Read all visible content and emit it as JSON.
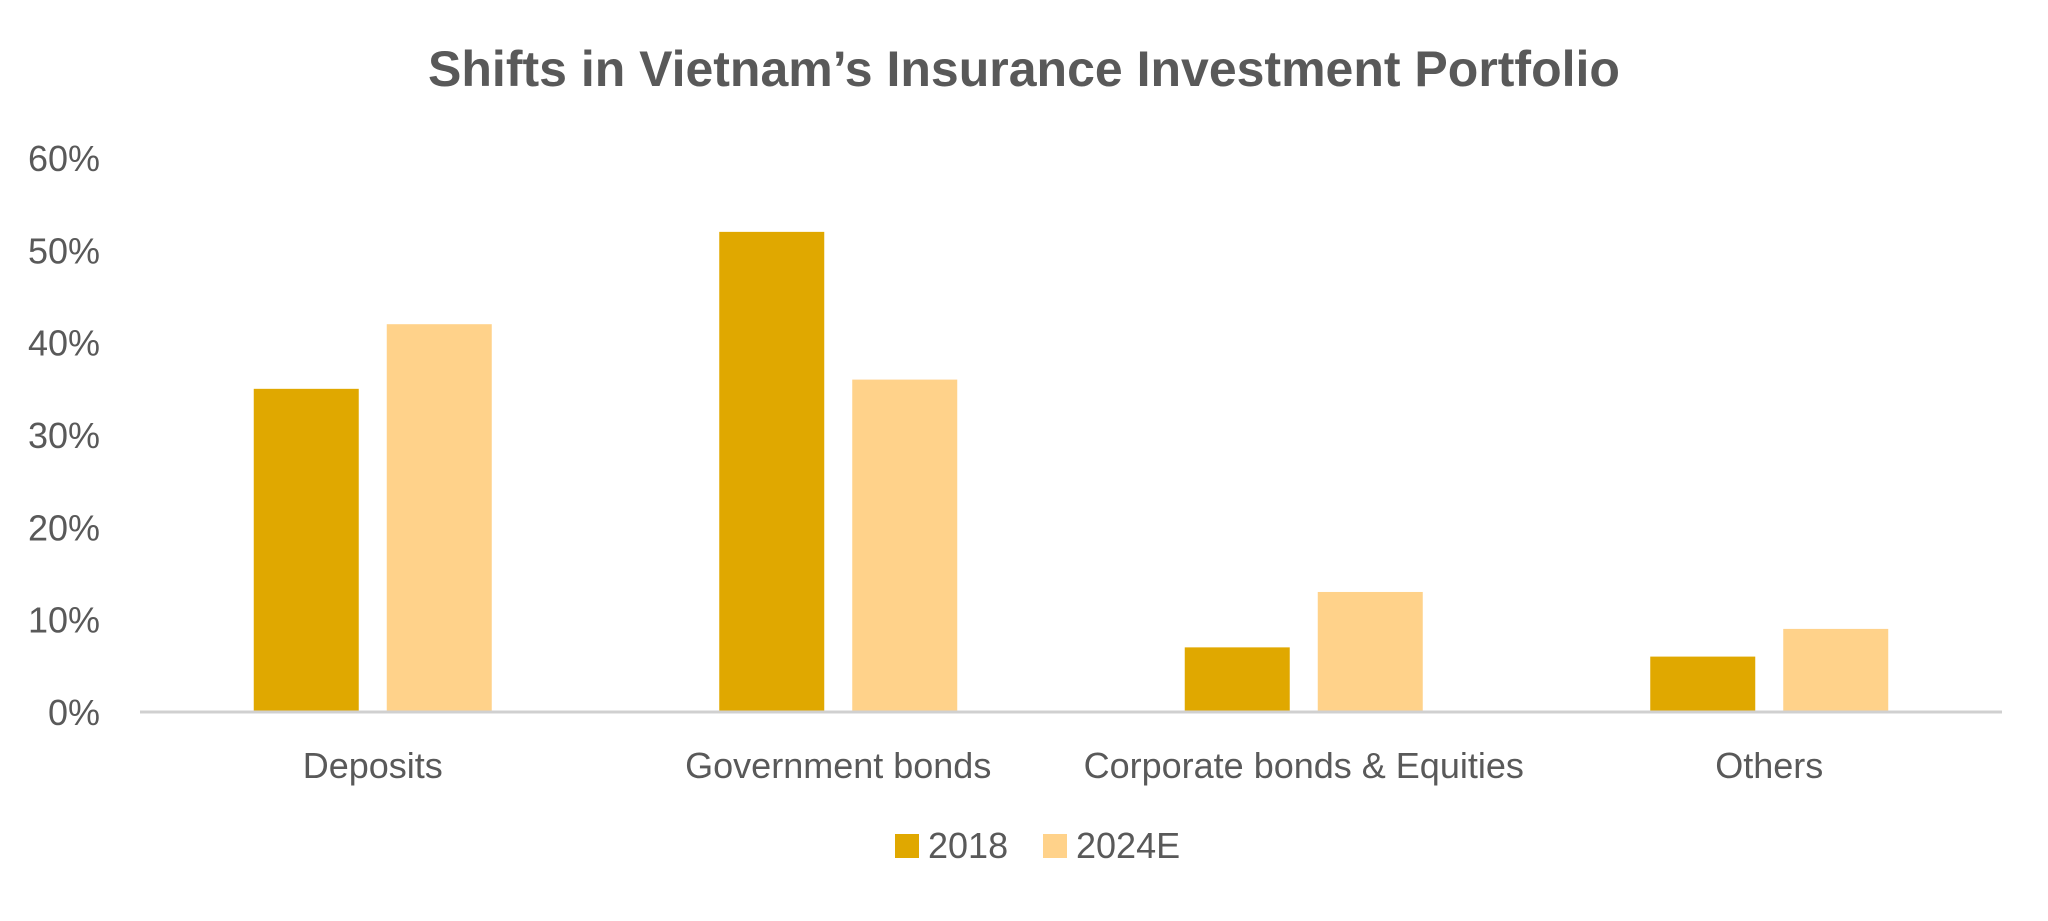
{
  "chart_data": {
    "type": "bar",
    "title": "Shifts in Vietnam’s Insurance Investment Portfolio",
    "categories": [
      "Deposits",
      "Government bonds",
      "Corporate bonds & Equities",
      "Others"
    ],
    "series": [
      {
        "name": "2018",
        "values": [
          35,
          52,
          7,
          6
        ],
        "color": "#E0A800"
      },
      {
        "name": "2024E",
        "values": [
          42,
          36,
          13,
          9
        ],
        "color": "#FFD28A"
      }
    ],
    "ylim": [
      0,
      60
    ],
    "yticks": [
      0,
      10,
      20,
      30,
      40,
      50,
      60
    ],
    "ytick_suffix": "%",
    "grid": false,
    "legend_position": "bottom-center"
  }
}
